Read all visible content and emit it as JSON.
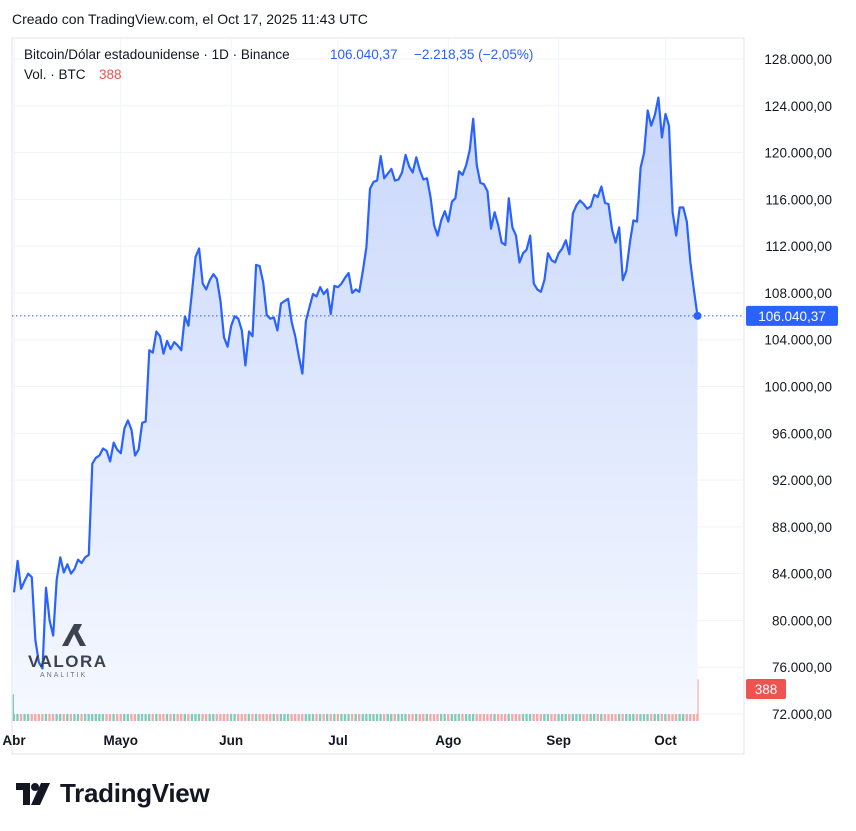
{
  "header": {
    "credit": "Creado con TradingView.com, el Oct 17, 2025 11:43 UTC"
  },
  "legend": {
    "symbol": "Bitcoin/Dólar estadounidense · 1D · Binance",
    "price": "106.040,37",
    "change": "−2.218,35 (−2,05%)",
    "vol_label": "Vol. · BTC",
    "vol_value": "388"
  },
  "watermark": {
    "brand": "VALORA",
    "sub": "ANALITIK"
  },
  "footer": {
    "brand": "TradingView"
  },
  "colors": {
    "line": "#2962ff",
    "area_top": "#c9d7fb",
    "area_bottom": "#f5f8ff",
    "vol_up": "#7fcbbc",
    "vol_down": "#f3a9a9",
    "last_price_bg": "#2962ff",
    "last_vol_bg": "#ef5350"
  },
  "chart_data": {
    "type": "area",
    "y_ticks": [
      "128.000,00",
      "124.000,00",
      "120.000,00",
      "116.000,00",
      "112.000,00",
      "108.000,00",
      "104.000,00",
      "100.000,00",
      "96.000,00",
      "92.000,00",
      "88.000,00",
      "84.000,00",
      "80.000,00",
      "76.000,00",
      "72.000,00"
    ],
    "y_tick_values": [
      128000,
      124000,
      120000,
      116000,
      112000,
      108000,
      104000,
      100000,
      96000,
      92000,
      88000,
      84000,
      80000,
      76000,
      72000
    ],
    "ylim": [
      72000,
      128000
    ],
    "x_ticks": [
      {
        "label": "Abr",
        "day": 0
      },
      {
        "label": "Mayo",
        "day": 30
      },
      {
        "label": "Jun",
        "day": 61
      },
      {
        "label": "Jul",
        "day": 91
      },
      {
        "label": "Ago",
        "day": 122
      },
      {
        "label": "Sep",
        "day": 153
      },
      {
        "label": "Oct",
        "day": 183
      }
    ],
    "x_range_days": [
      0,
      200
    ],
    "last_price_label": "106.040,37",
    "last_price_value": 106040,
    "last_volume_label": "388",
    "series": [
      {
        "values": [
          [
            0,
            82400
          ],
          [
            1,
            85100
          ],
          [
            2,
            82700
          ],
          [
            3,
            83400
          ],
          [
            4,
            84000
          ],
          [
            5,
            83700
          ],
          [
            6,
            78300
          ],
          [
            7,
            76400
          ],
          [
            8,
            75900
          ],
          [
            9,
            82800
          ],
          [
            10,
            80000
          ],
          [
            11,
            78700
          ],
          [
            12,
            83500
          ],
          [
            13,
            85400
          ],
          [
            14,
            84100
          ],
          [
            15,
            84800
          ],
          [
            16,
            84000
          ],
          [
            17,
            84400
          ],
          [
            18,
            85200
          ],
          [
            19,
            84900
          ],
          [
            20,
            85400
          ],
          [
            21,
            85600
          ],
          [
            22,
            93400
          ],
          [
            23,
            93900
          ],
          [
            24,
            94100
          ],
          [
            25,
            94700
          ],
          [
            26,
            94500
          ],
          [
            27,
            93600
          ],
          [
            28,
            95200
          ],
          [
            29,
            94600
          ],
          [
            30,
            94300
          ],
          [
            31,
            96400
          ],
          [
            32,
            97100
          ],
          [
            33,
            96300
          ],
          [
            34,
            94100
          ],
          [
            35,
            94600
          ],
          [
            36,
            96900
          ],
          [
            37,
            97000
          ],
          [
            38,
            103100
          ],
          [
            39,
            102900
          ],
          [
            40,
            104700
          ],
          [
            41,
            104300
          ],
          [
            42,
            102800
          ],
          [
            43,
            103900
          ],
          [
            44,
            103200
          ],
          [
            45,
            103800
          ],
          [
            46,
            103500
          ],
          [
            47,
            103100
          ],
          [
            48,
            106000
          ],
          [
            49,
            105200
          ],
          [
            50,
            108100
          ],
          [
            51,
            111100
          ],
          [
            52,
            111800
          ],
          [
            53,
            108800
          ],
          [
            54,
            108300
          ],
          [
            55,
            109100
          ],
          [
            56,
            109600
          ],
          [
            57,
            109200
          ],
          [
            58,
            107300
          ],
          [
            59,
            104200
          ],
          [
            60,
            103400
          ],
          [
            61,
            105200
          ],
          [
            62,
            106000
          ],
          [
            63,
            105800
          ],
          [
            64,
            104800
          ],
          [
            65,
            101800
          ],
          [
            66,
            104700
          ],
          [
            67,
            104300
          ],
          [
            68,
            110400
          ],
          [
            69,
            110300
          ],
          [
            70,
            108900
          ],
          [
            71,
            106100
          ],
          [
            72,
            105800
          ],
          [
            73,
            105900
          ],
          [
            74,
            104800
          ],
          [
            75,
            107100
          ],
          [
            76,
            107300
          ],
          [
            77,
            107500
          ],
          [
            78,
            105500
          ],
          [
            79,
            104300
          ],
          [
            80,
            102600
          ],
          [
            81,
            101100
          ],
          [
            82,
            105600
          ],
          [
            83,
            106800
          ],
          [
            84,
            107900
          ],
          [
            85,
            107700
          ],
          [
            86,
            108500
          ],
          [
            87,
            107900
          ],
          [
            88,
            108300
          ],
          [
            89,
            106200
          ],
          [
            90,
            108600
          ],
          [
            91,
            108500
          ],
          [
            92,
            108800
          ],
          [
            93,
            109300
          ],
          [
            94,
            109700
          ],
          [
            95,
            108000
          ],
          [
            96,
            108300
          ],
          [
            97,
            108100
          ],
          [
            98,
            109900
          ],
          [
            99,
            111900
          ],
          [
            100,
            116900
          ],
          [
            101,
            117500
          ],
          [
            102,
            117600
          ],
          [
            103,
            119700
          ],
          [
            104,
            117800
          ],
          [
            105,
            118200
          ],
          [
            106,
            118600
          ],
          [
            107,
            117600
          ],
          [
            108,
            117700
          ],
          [
            109,
            118300
          ],
          [
            110,
            119800
          ],
          [
            111,
            118800
          ],
          [
            112,
            118300
          ],
          [
            113,
            119600
          ],
          [
            114,
            118500
          ],
          [
            115,
            117700
          ],
          [
            116,
            117800
          ],
          [
            117,
            116200
          ],
          [
            118,
            113800
          ],
          [
            119,
            112900
          ],
          [
            120,
            114200
          ],
          [
            121,
            115000
          ],
          [
            122,
            114100
          ],
          [
            123,
            115800
          ],
          [
            124,
            116100
          ],
          [
            125,
            118400
          ],
          [
            126,
            118100
          ],
          [
            127,
            118900
          ],
          [
            128,
            120200
          ],
          [
            129,
            122900
          ],
          [
            130,
            118900
          ],
          [
            131,
            117400
          ],
          [
            132,
            117300
          ],
          [
            133,
            116700
          ],
          [
            134,
            113500
          ],
          [
            135,
            114900
          ],
          [
            136,
            113800
          ],
          [
            137,
            112300
          ],
          [
            138,
            112100
          ],
          [
            139,
            116100
          ],
          [
            140,
            113600
          ],
          [
            141,
            112900
          ],
          [
            142,
            110600
          ],
          [
            143,
            111400
          ],
          [
            144,
            111700
          ],
          [
            145,
            112900
          ],
          [
            146,
            108800
          ],
          [
            147,
            108300
          ],
          [
            148,
            108100
          ],
          [
            149,
            109100
          ],
          [
            150,
            111400
          ],
          [
            151,
            110800
          ],
          [
            152,
            110600
          ],
          [
            153,
            111400
          ],
          [
            154,
            111800
          ],
          [
            155,
            112500
          ],
          [
            156,
            111300
          ],
          [
            157,
            114800
          ],
          [
            158,
            115500
          ],
          [
            159,
            115900
          ],
          [
            160,
            115600
          ],
          [
            161,
            115200
          ],
          [
            162,
            115400
          ],
          [
            163,
            116400
          ],
          [
            164,
            116200
          ],
          [
            165,
            117100
          ],
          [
            166,
            115700
          ],
          [
            167,
            115600
          ],
          [
            168,
            113400
          ],
          [
            169,
            112300
          ],
          [
            170,
            113600
          ],
          [
            171,
            109100
          ],
          [
            172,
            109900
          ],
          [
            173,
            112300
          ],
          [
            174,
            114200
          ],
          [
            175,
            114100
          ],
          [
            176,
            118700
          ],
          [
            177,
            120000
          ],
          [
            178,
            123600
          ],
          [
            179,
            122300
          ],
          [
            180,
            123200
          ],
          [
            181,
            124700
          ],
          [
            182,
            121300
          ],
          [
            183,
            123300
          ],
          [
            184,
            122300
          ],
          [
            185,
            114900
          ],
          [
            186,
            112900
          ],
          [
            187,
            115300
          ],
          [
            188,
            115300
          ],
          [
            189,
            114100
          ],
          [
            190,
            110600
          ],
          [
            191,
            108200
          ],
          [
            192,
            106040
          ]
        ]
      }
    ],
    "volume": {
      "max_note": "tallest bar near first Oct week",
      "pattern_seed": 7
    }
  }
}
